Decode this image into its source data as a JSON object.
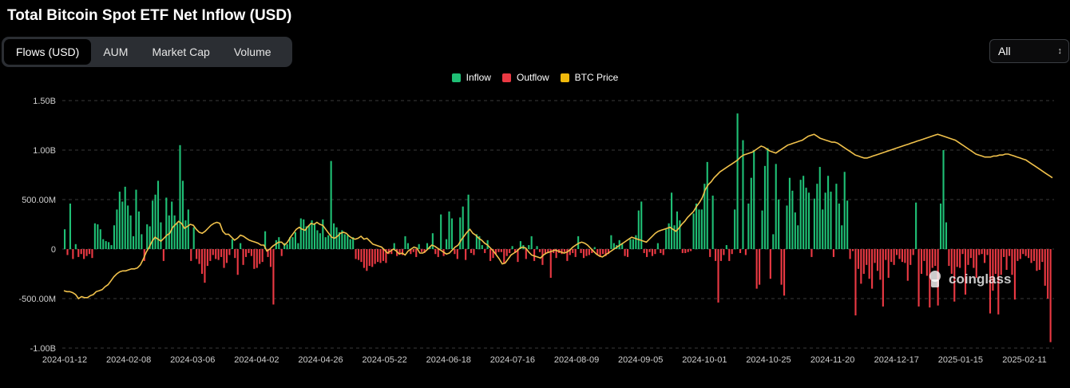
{
  "title": "Total Bitcoin Spot ETF Net Inflow (USD)",
  "tabs": [
    {
      "label": "Flows (USD)",
      "active": true
    },
    {
      "label": "AUM",
      "active": false
    },
    {
      "label": "Market Cap",
      "active": false
    },
    {
      "label": "Volume",
      "active": false
    }
  ],
  "range_select": {
    "value": "All",
    "icon": "chevron-up-down-icon"
  },
  "legend": [
    {
      "label": "Inflow",
      "color": "#1fbf75"
    },
    {
      "label": "Outflow",
      "color": "#ea3943"
    },
    {
      "label": "BTC Price",
      "color": "#f0b90b"
    }
  ],
  "watermark": {
    "text": "coinglass",
    "icon": "coinglass-logo-icon"
  },
  "colors": {
    "inflow": "#1fbf75",
    "outflow": "#ea3943",
    "price": "#f0c14b",
    "grid": "#3a3a3a"
  },
  "chart_data": {
    "type": "bar",
    "title": "Total Bitcoin Spot ETF Net Inflow (USD)",
    "ylim": [
      -1000000000,
      1500000000
    ],
    "yticks": [
      {
        "value": 1500000000,
        "label": "1.50B"
      },
      {
        "value": 1000000000,
        "label": "1.00B"
      },
      {
        "value": 500000000,
        "label": "500.00M"
      },
      {
        "value": 0,
        "label": "0"
      },
      {
        "value": -500000000,
        "label": "-500.00M"
      },
      {
        "value": -1000000000,
        "label": "-1.00B"
      }
    ],
    "xtick_labels": [
      "2024-01-12",
      "2024-02-08",
      "2024-03-06",
      "2024-04-02",
      "2024-04-26",
      "2024-05-22",
      "2024-06-18",
      "2024-07-16",
      "2024-08-09",
      "2024-09-05",
      "2024-10-01",
      "2024-10-25",
      "2024-11-20",
      "2024-12-17",
      "2025-01-15",
      "2025-02-11"
    ],
    "grid": "horizontal dashed",
    "legend_position": "top-center",
    "series": [
      {
        "name": "Inflow/Outflow",
        "unit": "USD (millions)",
        "values": [
          200,
          -60,
          460,
          -100,
          50,
          -80,
          -50,
          -100,
          -70,
          -50,
          -90,
          260,
          250,
          200,
          100,
          80,
          70,
          40,
          240,
          400,
          580,
          480,
          630,
          440,
          340,
          130,
          600,
          380,
          150,
          -120,
          250,
          230,
          490,
          550,
          690,
          270,
          -120,
          520,
          340,
          480,
          340,
          260,
          1050,
          690,
          290,
          400,
          -120,
          220,
          -100,
          -150,
          -250,
          -340,
          -170,
          -120,
          -60,
          -100,
          -110,
          -80,
          -190,
          -140,
          -60,
          100,
          -90,
          -260,
          60,
          -160,
          -80,
          -40,
          -70,
          -200,
          -190,
          -150,
          -130,
          180,
          -80,
          -180,
          -560,
          90,
          120,
          -70,
          60,
          50,
          120,
          120,
          170,
          60,
          310,
          300,
          230,
          240,
          290,
          260,
          190,
          160,
          300,
          120,
          140,
          890,
          260,
          220,
          170,
          190,
          150,
          140,
          100,
          120,
          -100,
          -110,
          -130,
          -190,
          -220,
          -170,
          -180,
          -150,
          -130,
          -140,
          -120,
          -140,
          -50,
          -50,
          60,
          -70,
          -50,
          -60,
          130,
          60,
          -50,
          -30,
          -80,
          50,
          -30,
          -40,
          60,
          30,
          160,
          -50,
          -80,
          350,
          -70,
          100,
          380,
          310,
          -50,
          -100,
          320,
          430,
          -110,
          550,
          -40,
          -60,
          150,
          130,
          40,
          -40,
          90,
          -120,
          -90,
          -50,
          -30,
          -30,
          -150,
          -70,
          -40,
          30,
          -40,
          -130,
          80,
          40,
          -100,
          40,
          130,
          -120,
          30,
          -30,
          -160,
          -50,
          -40,
          -290,
          -40,
          -90,
          -40,
          -50,
          -30,
          -120,
          -60,
          -40,
          -80,
          130,
          -40,
          -90,
          -70,
          -60,
          -40,
          20,
          -60,
          -80,
          -50,
          -70,
          -50,
          140,
          60,
          40,
          90,
          60,
          -70,
          -80,
          100,
          100,
          140,
          390,
          480,
          -40,
          -80,
          -30,
          -70,
          -50,
          60,
          -40,
          -60,
          200,
          260,
          570,
          240,
          380,
          290,
          -40,
          -40,
          -30,
          -20,
          360,
          460,
          400,
          400,
          660,
          880,
          -80,
          540,
          -120,
          -540,
          -120,
          -60,
          40,
          -120,
          -50,
          400,
          1370,
          -40,
          1100,
          -60,
          460,
          720,
          1000,
          -400,
          -360,
          390,
          840,
          1020,
          -300,
          150,
          860,
          500,
          -360,
          -470,
          440,
          720,
          590,
          370,
          240,
          700,
          740,
          620,
          570,
          -80,
          510,
          660,
          830,
          400,
          570,
          740,
          580,
          -80,
          660,
          460,
          240,
          780,
          490,
          -100,
          -20,
          -670,
          -200,
          -350,
          -250,
          -160,
          -300,
          -400,
          -140,
          -220,
          -310,
          -580,
          -110,
          -290,
          -130,
          -160,
          -60,
          -100,
          -130,
          -140,
          -320,
          -160,
          -60,
          470,
          -580,
          -250,
          -120,
          -270,
          -590,
          -190,
          -170,
          -570,
          460,
          1000,
          270,
          -170,
          -250,
          -530,
          -180,
          -190,
          -50,
          -460,
          -160,
          -90,
          -190,
          -290,
          -60,
          -50,
          -140,
          -60,
          -650,
          -420,
          -250,
          -660,
          -260,
          -80,
          -210,
          -70,
          -260,
          -510,
          -120,
          -100,
          -50,
          -70,
          -90,
          -140,
          -120,
          -220,
          -210,
          -130,
          -370,
          -500,
          -940
        ]
      },
      {
        "name": "BTC Price",
        "unit": "relative",
        "values": [
          -420,
          -430,
          -430,
          -440,
          -460,
          -500,
          -480,
          -490,
          -490,
          -470,
          -460,
          -430,
          -420,
          -410,
          -380,
          -360,
          -320,
          -280,
          -250,
          -230,
          -220,
          -220,
          -210,
          -200,
          -200,
          -190,
          -160,
          -100,
          -30,
          20,
          80,
          120,
          100,
          80,
          110,
          140,
          160,
          220,
          250,
          280,
          260,
          210,
          230,
          250,
          240,
          200,
          170,
          160,
          180,
          210,
          240,
          260,
          270,
          260,
          180,
          150,
          150,
          120,
          90,
          110,
          140,
          130,
          110,
          90,
          80,
          70,
          60,
          40,
          40,
          -20,
          0,
          30,
          50,
          70,
          70,
          40,
          70,
          120,
          160,
          200,
          220,
          200,
          190,
          230,
          260,
          250,
          270,
          250,
          240,
          200,
          160,
          120,
          110,
          130,
          160,
          170,
          160,
          130,
          110,
          100,
          110,
          130,
          100,
          110,
          80,
          50,
          40,
          30,
          20,
          -10,
          -40,
          -20,
          0,
          -20,
          -50,
          -40,
          -60,
          -20,
          0,
          20,
          10,
          -40,
          -40,
          -20,
          10,
          40,
          30,
          10,
          -10,
          -30,
          -50,
          -40,
          -10,
          20,
          40,
          90,
          130,
          170,
          200,
          160,
          140,
          110,
          90,
          60,
          40,
          10,
          -20,
          -60,
          -100,
          -150,
          -140,
          -100,
          -60,
          -40,
          -20,
          10,
          20,
          10,
          -30,
          -60,
          -70,
          -80,
          -90,
          -60,
          -40,
          -30,
          -20,
          -10,
          -20,
          -30,
          -40,
          -30,
          -10,
          20,
          40,
          60,
          70,
          60,
          40,
          10,
          -20,
          -50,
          -70,
          -80,
          -60,
          -40,
          -20,
          0,
          20,
          40,
          60,
          80,
          100,
          120,
          110,
          100,
          90,
          80,
          70,
          100,
          130,
          160,
          180,
          190,
          200,
          210,
          220,
          200,
          180,
          210,
          250,
          280,
          320,
          350,
          380,
          430,
          470,
          520,
          600,
          650,
          680,
          720,
          750,
          780,
          800,
          820,
          840,
          860,
          880,
          900,
          930,
          950,
          960,
          970,
          980,
          1000,
          1020,
          1040,
          1030,
          1010,
          990,
          980,
          970,
          990,
          1010,
          1030,
          1050,
          1060,
          1070,
          1080,
          1090,
          1100,
          1120,
          1140,
          1150,
          1160,
          1140,
          1120,
          1110,
          1100,
          1090,
          1080,
          1080,
          1070,
          1050,
          1030,
          1010,
          990,
          970,
          950,
          940,
          930,
          920,
          920,
          930,
          940,
          950,
          960,
          970,
          980,
          990,
          1000,
          1010,
          1020,
          1030,
          1040,
          1050,
          1060,
          1070,
          1080,
          1090,
          1100,
          1110,
          1120,
          1130,
          1140,
          1150,
          1160,
          1150,
          1140,
          1130,
          1120,
          1110,
          1100,
          1080,
          1060,
          1040,
          1020,
          1000,
          980,
          960,
          950,
          940,
          930,
          930,
          930,
          940,
          940,
          950,
          950,
          960,
          960,
          950,
          940,
          930,
          920,
          910,
          900,
          880,
          860,
          840,
          820,
          800,
          780,
          760,
          740,
          720
        ]
      }
    ]
  }
}
